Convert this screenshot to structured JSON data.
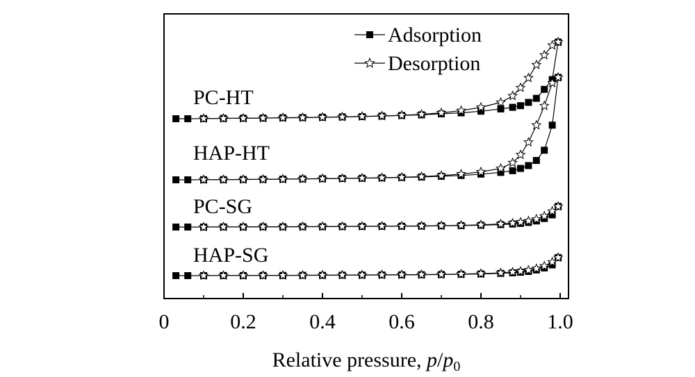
{
  "chart_data": {
    "type": "line",
    "title": "",
    "xlabel_main": "Relative pressure, ",
    "xlabel_p": "p",
    "xlabel_slash": "/",
    "xlabel_p0": "p",
    "xlabel_p0_sub": "0",
    "ylabel": "",
    "xlim": [
      0,
      1.0
    ],
    "y_axis_ticks": false,
    "x_ticks": [
      0,
      0.2,
      0.4,
      0.6,
      0.8,
      1.0
    ],
    "x_tick_labels": [
      "0",
      "0.2",
      "0.4",
      "0.6",
      "0.8",
      "1.0"
    ],
    "legend": {
      "placement": "top-right",
      "entries": [
        {
          "label": "Adsorption",
          "marker": "filled-square"
        },
        {
          "label": "Desorption",
          "marker": "open-star"
        }
      ]
    },
    "samples": [
      {
        "name": "PC-HT",
        "adsorption": {
          "x": [
            0.03,
            0.06,
            0.1,
            0.15,
            0.2,
            0.25,
            0.3,
            0.35,
            0.4,
            0.45,
            0.5,
            0.55,
            0.6,
            0.65,
            0.7,
            0.75,
            0.8,
            0.85,
            0.88,
            0.9,
            0.92,
            0.94,
            0.96,
            0.98,
            0.995
          ],
          "y": [
            0.0,
            0.0,
            0.001,
            0.002,
            0.003,
            0.004,
            0.006,
            0.007,
            0.009,
            0.011,
            0.013,
            0.016,
            0.02,
            0.024,
            0.03,
            0.036,
            0.046,
            0.06,
            0.07,
            0.08,
            0.1,
            0.125,
            0.18,
            0.24,
            0.47
          ]
        },
        "desorption": {
          "x": [
            0.995,
            0.98,
            0.96,
            0.94,
            0.92,
            0.9,
            0.88,
            0.85,
            0.8,
            0.75,
            0.7,
            0.65,
            0.6,
            0.55,
            0.5,
            0.45,
            0.4,
            0.35,
            0.3,
            0.25,
            0.2,
            0.15,
            0.1
          ],
          "y": [
            0.47,
            0.45,
            0.39,
            0.33,
            0.25,
            0.19,
            0.14,
            0.1,
            0.07,
            0.05,
            0.036,
            0.027,
            0.021,
            0.017,
            0.014,
            0.011,
            0.009,
            0.007,
            0.006,
            0.004,
            0.003,
            0.002,
            0.001
          ]
        }
      },
      {
        "name": "HAP-HT",
        "adsorption": {
          "x": [
            0.03,
            0.06,
            0.1,
            0.15,
            0.2,
            0.25,
            0.3,
            0.35,
            0.4,
            0.45,
            0.5,
            0.55,
            0.6,
            0.65,
            0.7,
            0.75,
            0.8,
            0.85,
            0.88,
            0.9,
            0.92,
            0.94,
            0.96,
            0.98,
            0.995
          ],
          "y": [
            0.0,
            0.0,
            0.001,
            0.002,
            0.003,
            0.004,
            0.006,
            0.008,
            0.01,
            0.012,
            0.014,
            0.017,
            0.021,
            0.025,
            0.031,
            0.038,
            0.05,
            0.065,
            0.08,
            0.1,
            0.125,
            0.17,
            0.26,
            0.48,
            0.9
          ]
        },
        "desorption": {
          "x": [
            0.995,
            0.98,
            0.96,
            0.94,
            0.92,
            0.9,
            0.88,
            0.85,
            0.8,
            0.75,
            0.7,
            0.65,
            0.6,
            0.55,
            0.5,
            0.45,
            0.4,
            0.35,
            0.3,
            0.25,
            0.2,
            0.15,
            0.1
          ],
          "y": [
            0.9,
            0.85,
            0.65,
            0.48,
            0.33,
            0.22,
            0.15,
            0.1,
            0.07,
            0.05,
            0.037,
            0.028,
            0.022,
            0.018,
            0.015,
            0.012,
            0.01,
            0.008,
            0.006,
            0.004,
            0.003,
            0.002,
            0.001
          ]
        }
      },
      {
        "name": "PC-SG",
        "adsorption": {
          "x": [
            0.03,
            0.06,
            0.1,
            0.15,
            0.2,
            0.25,
            0.3,
            0.35,
            0.4,
            0.45,
            0.5,
            0.55,
            0.6,
            0.65,
            0.7,
            0.75,
            0.8,
            0.85,
            0.88,
            0.9,
            0.92,
            0.94,
            0.96,
            0.98,
            0.995
          ],
          "y": [
            0.0,
            0.0,
            0.0,
            0.001,
            0.001,
            0.002,
            0.002,
            0.003,
            0.003,
            0.004,
            0.005,
            0.006,
            0.007,
            0.008,
            0.01,
            0.012,
            0.015,
            0.02,
            0.025,
            0.03,
            0.038,
            0.05,
            0.07,
            0.1,
            0.17
          ]
        },
        "desorption": {
          "x": [
            0.995,
            0.98,
            0.96,
            0.94,
            0.92,
            0.9,
            0.88,
            0.85,
            0.8,
            0.75,
            0.7,
            0.65,
            0.6,
            0.55,
            0.5,
            0.45,
            0.4,
            0.35,
            0.3,
            0.25,
            0.2,
            0.15,
            0.1
          ],
          "y": [
            0.17,
            0.13,
            0.09,
            0.065,
            0.05,
            0.04,
            0.032,
            0.025,
            0.018,
            0.014,
            0.011,
            0.009,
            0.008,
            0.007,
            0.006,
            0.005,
            0.004,
            0.003,
            0.002,
            0.002,
            0.001,
            0.001,
            0.0
          ]
        }
      },
      {
        "name": "HAP-SG",
        "adsorption": {
          "x": [
            0.03,
            0.06,
            0.1,
            0.15,
            0.2,
            0.25,
            0.3,
            0.35,
            0.4,
            0.45,
            0.5,
            0.55,
            0.6,
            0.65,
            0.7,
            0.75,
            0.8,
            0.85,
            0.88,
            0.9,
            0.92,
            0.94,
            0.96,
            0.98,
            0.995
          ],
          "y": [
            0.0,
            0.0,
            0.0,
            0.001,
            0.001,
            0.002,
            0.002,
            0.003,
            0.003,
            0.004,
            0.005,
            0.006,
            0.007,
            0.008,
            0.01,
            0.012,
            0.015,
            0.02,
            0.025,
            0.03,
            0.037,
            0.05,
            0.068,
            0.095,
            0.16
          ]
        },
        "desorption": {
          "x": [
            0.995,
            0.98,
            0.96,
            0.94,
            0.92,
            0.9,
            0.88,
            0.85,
            0.8,
            0.75,
            0.7,
            0.65,
            0.6,
            0.55,
            0.5,
            0.45,
            0.4,
            0.35,
            0.3,
            0.25,
            0.2,
            0.15,
            0.1
          ],
          "y": [
            0.16,
            0.12,
            0.085,
            0.062,
            0.048,
            0.038,
            0.031,
            0.024,
            0.018,
            0.014,
            0.011,
            0.009,
            0.008,
            0.007,
            0.006,
            0.005,
            0.004,
            0.003,
            0.002,
            0.002,
            0.001,
            0.001,
            0.0
          ]
        }
      }
    ]
  }
}
